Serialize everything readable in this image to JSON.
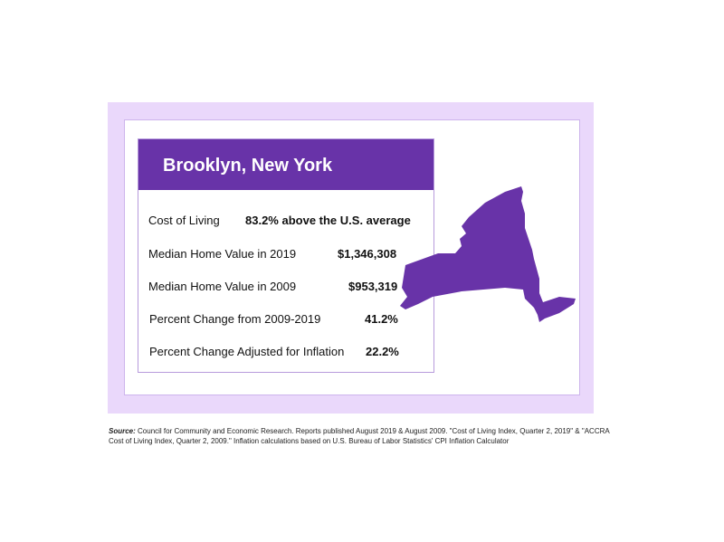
{
  "card": {
    "title": "Brooklyn, New York",
    "rows": [
      {
        "label": "Cost of Living",
        "value": "83.2% above the U.S. average"
      },
      {
        "label": "Median Home Value in 2019",
        "value": "$1,346,308"
      },
      {
        "label": "Median Home Value in 2009",
        "value": "$953,319"
      },
      {
        "label": "Percent Change from 2009-2019",
        "value": "41.2%"
      },
      {
        "label": "Percent Change Adjusted for Inflation",
        "value": "22.2%"
      }
    ]
  },
  "source": {
    "label": "Source:",
    "text": " Council for Community and Economic Research. Reports published August 2019 & August 2009. \"Cost of Living Index, Quarter 2, 2019\" & \"ACCRA Cost of Living Index, Quarter 2, 2009.\" Inflation calculations based on U.S. Bureau of Labor Statistics' CPI Inflation Calculator"
  },
  "colors": {
    "header": "#6833a8",
    "map_fill": "#6833a8",
    "frame": "#ead8fb",
    "card_border": "#b79bdc"
  }
}
